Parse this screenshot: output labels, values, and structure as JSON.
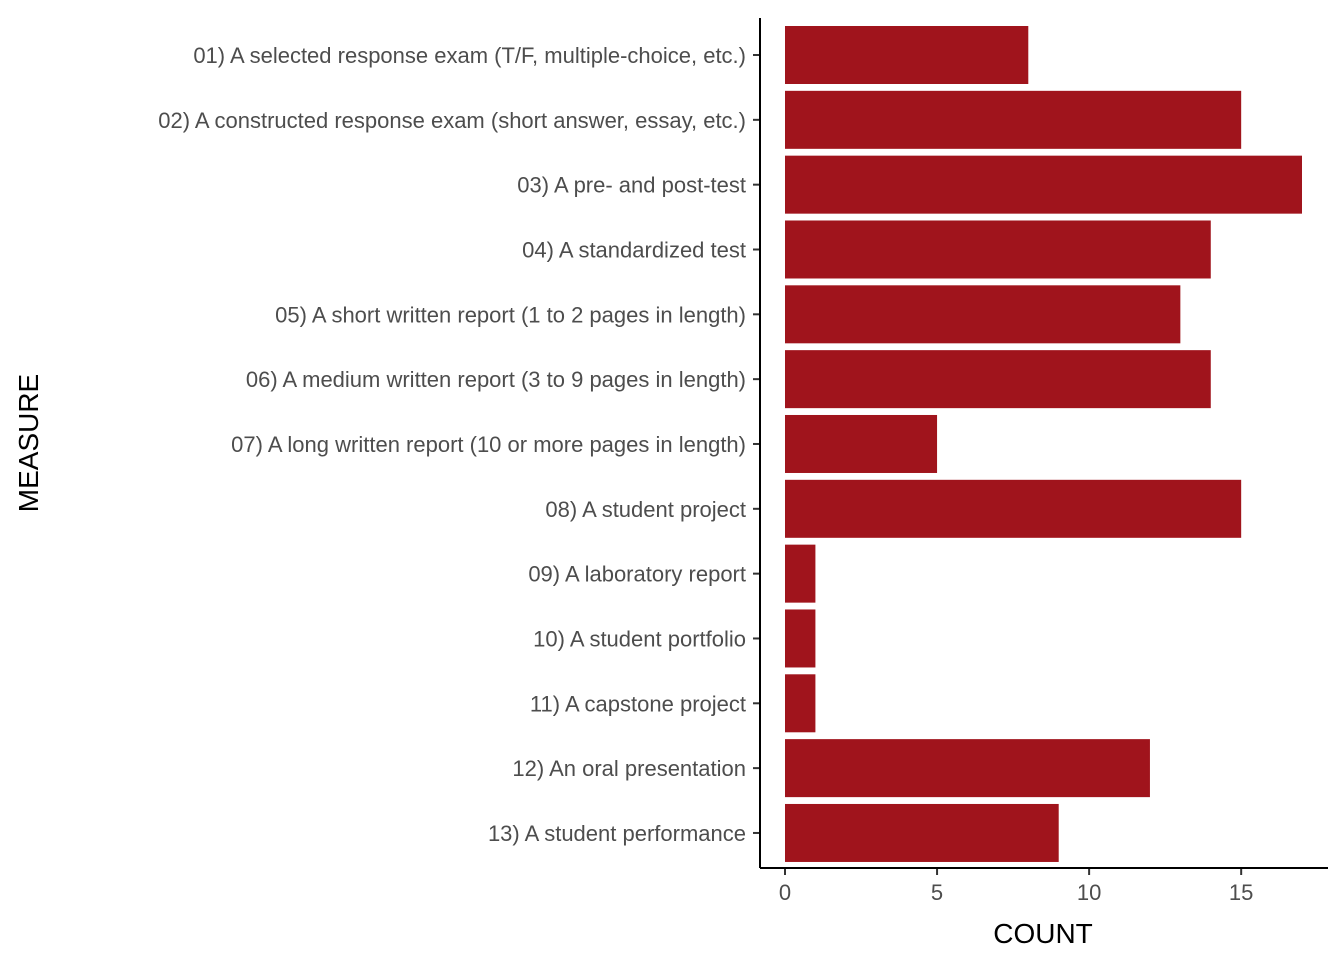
{
  "chart_data": {
    "type": "bar",
    "orientation": "horizontal",
    "categories": [
      "01) A selected response exam (T/F, multiple-choice, etc.)",
      "02) A constructed response exam (short answer, essay, etc.)",
      "03) A pre- and post-test",
      "04) A standardized test",
      "05) A short written report (1 to 2 pages in length)",
      "06) A medium written report (3 to 9 pages in length)",
      "07) A long written report (10 or more pages in length)",
      "08) A student project",
      "09) A laboratory report",
      "10) A student portfolio",
      "11) A capstone project",
      "12) An oral presentation",
      "13) A student performance"
    ],
    "values": [
      8,
      15,
      17,
      14,
      13,
      14,
      5,
      15,
      1,
      1,
      1,
      12,
      9
    ],
    "xlabel": "COUNT",
    "ylabel": "MEASURE",
    "xlim": [
      0,
      17
    ],
    "xticks": [
      0,
      5,
      10,
      15
    ],
    "grid": false,
    "legend": "none",
    "bar_color": "#A0141C"
  }
}
